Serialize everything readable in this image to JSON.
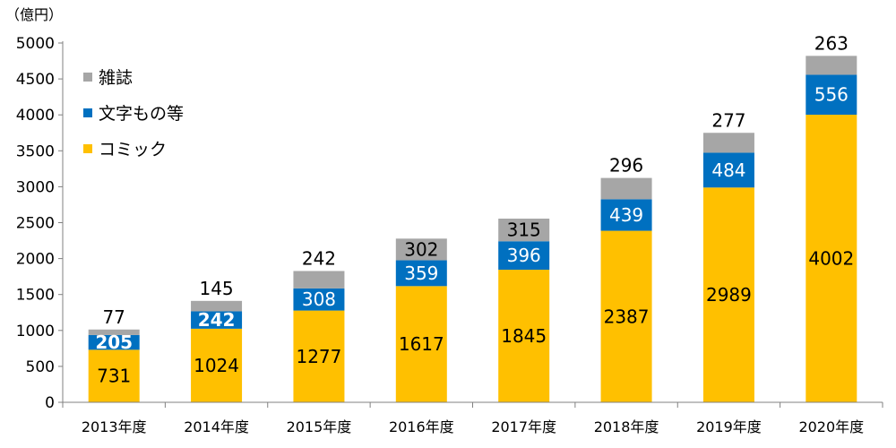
{
  "chart_data": {
    "type": "bar",
    "stacked": true,
    "y_unit": "（億円）",
    "categories": [
      "2013年度",
      "2014年度",
      "2015年度",
      "2016年度",
      "2017年度",
      "2018年度",
      "2019年度",
      "2020年度"
    ],
    "series": [
      {
        "name": "コミック",
        "color": "#FFC000",
        "label_color": "#000000",
        "values": [
          731,
          1024,
          1277,
          1617,
          1845,
          2387,
          2989,
          4002
        ]
      },
      {
        "name": "文字もの等",
        "color": "#0070C0",
        "label_color": "#FFFFFF",
        "values": [
          205,
          242,
          308,
          359,
          396,
          439,
          484,
          556
        ]
      },
      {
        "name": "雑誌",
        "color": "#A6A6A6",
        "label_color": "#000000",
        "values": [
          77,
          145,
          242,
          302,
          315,
          296,
          277,
          263
        ]
      }
    ],
    "ylim": [
      0,
      5000
    ],
    "yticks": [
      0,
      500,
      1000,
      1500,
      2000,
      2500,
      3000,
      3500,
      4000,
      4500,
      5000
    ],
    "legend_order": [
      "雑誌",
      "文字もの等",
      "コミック"
    ],
    "legend_position": "top-left",
    "grid": false
  }
}
